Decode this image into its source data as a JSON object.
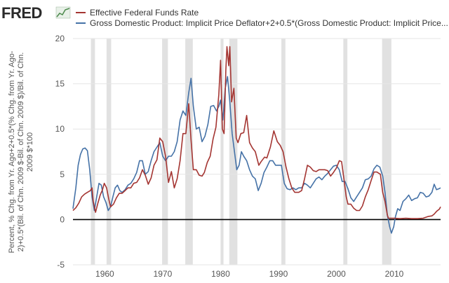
{
  "header": {
    "logo_text": "FRED",
    "logo_icon": "fred-chart-icon"
  },
  "colors": {
    "series_red": "#a43532",
    "series_blue": "#4572a7",
    "recession": "#e1e1e1",
    "grid": "#e6e6e6",
    "zero_line": "#000000"
  },
  "chart_data": {
    "type": "line",
    "xlabel": "",
    "ylabel": "Percent, % Chg. from Yr. Ago+2+0.5*(% Chg. from Yr. Ago-2)+0.5*(Bil. of Chn. 2009 $-Bil. of Chn. 2009 $)/Bil. of Chn. 2009 $*100",
    "ylabel_lines": [
      "Percent, % Chg. from Yr. Ago+2+0.5*(% Chg. from Yr. Ago-",
      "2)+0.5*(Bil. of Chn. 2009 $-Bil. of Chn. 2009 $)/Bil. of Chn.",
      "2009 $*100"
    ],
    "xlim": [
      1954.5,
      2018.0
    ],
    "ylim": [
      -5,
      20
    ],
    "yticks": [
      -5,
      0,
      5,
      10,
      15,
      20
    ],
    "xticks": [
      1960,
      1970,
      1980,
      1990,
      2000,
      2010
    ],
    "grid": true,
    "legend_position": "top-left",
    "recessions": [
      [
        1957.6,
        1958.3
      ],
      [
        1960.3,
        1961.1
      ],
      [
        1969.9,
        1970.9
      ],
      [
        1973.9,
        1975.2
      ],
      [
        1980.0,
        1980.5
      ],
      [
        1981.5,
        1982.9
      ],
      [
        1990.5,
        1991.2
      ],
      [
        2001.2,
        2001.9
      ],
      [
        2007.9,
        2009.5
      ]
    ],
    "series": [
      {
        "name": "Effective Federal Funds Rate",
        "color": "#a43532",
        "points": [
          [
            1954.5,
            1.0
          ],
          [
            1955.0,
            1.3
          ],
          [
            1955.5,
            1.8
          ],
          [
            1956.0,
            2.5
          ],
          [
            1956.5,
            2.8
          ],
          [
            1957.0,
            3.0
          ],
          [
            1957.5,
            3.2
          ],
          [
            1957.8,
            3.5
          ],
          [
            1958.0,
            2.0
          ],
          [
            1958.4,
            0.8
          ],
          [
            1958.8,
            1.8
          ],
          [
            1959.2,
            2.7
          ],
          [
            1959.6,
            3.3
          ],
          [
            1959.9,
            4.0
          ],
          [
            1960.3,
            3.5
          ],
          [
            1960.7,
            2.2
          ],
          [
            1961.0,
            1.4
          ],
          [
            1961.5,
            1.7
          ],
          [
            1962.0,
            2.4
          ],
          [
            1962.5,
            2.9
          ],
          [
            1963.0,
            2.9
          ],
          [
            1963.5,
            3.2
          ],
          [
            1964.0,
            3.5
          ],
          [
            1964.5,
            3.5
          ],
          [
            1965.0,
            4.0
          ],
          [
            1965.5,
            4.1
          ],
          [
            1966.0,
            4.6
          ],
          [
            1966.5,
            5.5
          ],
          [
            1967.0,
            4.9
          ],
          [
            1967.5,
            3.9
          ],
          [
            1968.0,
            4.6
          ],
          [
            1968.5,
            6.0
          ],
          [
            1969.0,
            6.6
          ],
          [
            1969.5,
            9.0
          ],
          [
            1970.0,
            8.6
          ],
          [
            1970.5,
            7.0
          ],
          [
            1971.0,
            4.1
          ],
          [
            1971.5,
            5.3
          ],
          [
            1972.0,
            3.5
          ],
          [
            1972.5,
            4.5
          ],
          [
            1973.0,
            6.5
          ],
          [
            1973.5,
            9.5
          ],
          [
            1974.0,
            9.5
          ],
          [
            1974.5,
            12.8
          ],
          [
            1974.9,
            8.8
          ],
          [
            1975.3,
            5.5
          ],
          [
            1975.8,
            5.5
          ],
          [
            1976.3,
            4.9
          ],
          [
            1976.8,
            4.8
          ],
          [
            1977.2,
            5.2
          ],
          [
            1977.7,
            6.3
          ],
          [
            1978.2,
            7.0
          ],
          [
            1978.7,
            8.9
          ],
          [
            1979.2,
            10.2
          ],
          [
            1979.7,
            13.8
          ],
          [
            1980.0,
            17.6
          ],
          [
            1980.3,
            10.0
          ],
          [
            1980.6,
            9.5
          ],
          [
            1980.9,
            16.5
          ],
          [
            1981.1,
            19.1
          ],
          [
            1981.4,
            17.0
          ],
          [
            1981.6,
            19.1
          ],
          [
            1981.9,
            13.0
          ],
          [
            1982.3,
            14.5
          ],
          [
            1982.7,
            9.0
          ],
          [
            1983.0,
            8.5
          ],
          [
            1983.5,
            9.5
          ],
          [
            1984.0,
            9.6
          ],
          [
            1984.5,
            11.5
          ],
          [
            1985.0,
            8.5
          ],
          [
            1985.5,
            7.9
          ],
          [
            1986.0,
            7.5
          ],
          [
            1986.6,
            6.0
          ],
          [
            1987.0,
            6.4
          ],
          [
            1987.6,
            6.9
          ],
          [
            1988.0,
            6.8
          ],
          [
            1988.6,
            8.0
          ],
          [
            1989.2,
            9.8
          ],
          [
            1989.8,
            8.6
          ],
          [
            1990.3,
            8.2
          ],
          [
            1990.8,
            7.5
          ],
          [
            1991.3,
            5.8
          ],
          [
            1991.8,
            4.5
          ],
          [
            1992.3,
            3.5
          ],
          [
            1992.8,
            3.0
          ],
          [
            1993.5,
            3.0
          ],
          [
            1994.0,
            3.2
          ],
          [
            1994.5,
            4.5
          ],
          [
            1995.0,
            6.0
          ],
          [
            1995.5,
            5.8
          ],
          [
            1996.0,
            5.4
          ],
          [
            1996.5,
            5.3
          ],
          [
            1997.0,
            5.5
          ],
          [
            1997.5,
            5.5
          ],
          [
            1998.0,
            5.5
          ],
          [
            1998.5,
            5.4
          ],
          [
            1999.0,
            4.8
          ],
          [
            1999.5,
            5.2
          ],
          [
            2000.0,
            5.7
          ],
          [
            2000.5,
            6.5
          ],
          [
            2000.9,
            6.4
          ],
          [
            2001.3,
            4.5
          ],
          [
            2001.7,
            2.5
          ],
          [
            2002.0,
            1.7
          ],
          [
            2002.5,
            1.7
          ],
          [
            2003.0,
            1.25
          ],
          [
            2003.5,
            1.0
          ],
          [
            2004.0,
            1.0
          ],
          [
            2004.5,
            1.5
          ],
          [
            2005.0,
            2.5
          ],
          [
            2005.5,
            3.3
          ],
          [
            2006.0,
            4.3
          ],
          [
            2006.5,
            5.25
          ],
          [
            2007.0,
            5.25
          ],
          [
            2007.6,
            5.0
          ],
          [
            2008.0,
            3.0
          ],
          [
            2008.4,
            2.0
          ],
          [
            2008.8,
            0.5
          ],
          [
            2009.0,
            0.15
          ],
          [
            2010.0,
            0.15
          ],
          [
            2011.0,
            0.1
          ],
          [
            2012.0,
            0.15
          ],
          [
            2013.0,
            0.1
          ],
          [
            2014.0,
            0.1
          ],
          [
            2015.0,
            0.15
          ],
          [
            2015.9,
            0.35
          ],
          [
            2016.5,
            0.4
          ],
          [
            2016.9,
            0.6
          ],
          [
            2017.3,
            0.9
          ],
          [
            2017.8,
            1.15
          ],
          [
            2018.0,
            1.4
          ]
        ]
      },
      {
        "name": "Gross Domestic Product: Implicit Price Deflator+2+0.5*(Gross Domestic Product: Implicit Price...",
        "color": "#4572a7",
        "points": [
          [
            1954.5,
            1.2
          ],
          [
            1955.0,
            3.5
          ],
          [
            1955.4,
            6.0
          ],
          [
            1955.8,
            7.2
          ],
          [
            1956.2,
            7.8
          ],
          [
            1956.6,
            7.9
          ],
          [
            1957.0,
            7.6
          ],
          [
            1957.4,
            5.5
          ],
          [
            1957.8,
            2.5
          ],
          [
            1958.2,
            1.0
          ],
          [
            1958.6,
            2.5
          ],
          [
            1959.0,
            4.0
          ],
          [
            1959.4,
            3.8
          ],
          [
            1959.8,
            2.5
          ],
          [
            1960.2,
            1.9
          ],
          [
            1960.6,
            1.0
          ],
          [
            1961.0,
            1.4
          ],
          [
            1961.4,
            2.5
          ],
          [
            1961.8,
            3.5
          ],
          [
            1962.2,
            3.8
          ],
          [
            1962.6,
            3.2
          ],
          [
            1963.0,
            3.0
          ],
          [
            1963.5,
            3.3
          ],
          [
            1964.0,
            3.8
          ],
          [
            1964.5,
            4.0
          ],
          [
            1965.0,
            4.5
          ],
          [
            1965.5,
            5.2
          ],
          [
            1966.0,
            6.5
          ],
          [
            1966.5,
            6.5
          ],
          [
            1967.0,
            5.0
          ],
          [
            1967.5,
            5.3
          ],
          [
            1968.0,
            6.5
          ],
          [
            1968.5,
            7.5
          ],
          [
            1969.0,
            8.0
          ],
          [
            1969.5,
            8.5
          ],
          [
            1970.0,
            7.0
          ],
          [
            1970.5,
            6.5
          ],
          [
            1971.0,
            7.0
          ],
          [
            1971.5,
            7.0
          ],
          [
            1972.0,
            7.5
          ],
          [
            1972.5,
            8.6
          ],
          [
            1973.0,
            11.0
          ],
          [
            1973.5,
            12.0
          ],
          [
            1974.0,
            11.5
          ],
          [
            1974.5,
            14.0
          ],
          [
            1974.9,
            15.6
          ],
          [
            1975.3,
            12.5
          ],
          [
            1975.8,
            10.0
          ],
          [
            1976.3,
            10.2
          ],
          [
            1976.8,
            8.6
          ],
          [
            1977.3,
            9.2
          ],
          [
            1977.8,
            10.5
          ],
          [
            1978.3,
            12.5
          ],
          [
            1978.8,
            12.6
          ],
          [
            1979.3,
            12.0
          ],
          [
            1979.7,
            12.5
          ],
          [
            1980.0,
            13.2
          ],
          [
            1980.4,
            11.0
          ],
          [
            1980.8,
            14.5
          ],
          [
            1981.2,
            15.8
          ],
          [
            1981.6,
            13.0
          ],
          [
            1982.0,
            9.5
          ],
          [
            1982.4,
            7.5
          ],
          [
            1982.8,
            5.5
          ],
          [
            1983.2,
            6.0
          ],
          [
            1983.6,
            7.5
          ],
          [
            1984.0,
            7.0
          ],
          [
            1984.5,
            6.5
          ],
          [
            1985.0,
            5.5
          ],
          [
            1985.5,
            4.8
          ],
          [
            1986.0,
            4.5
          ],
          [
            1986.5,
            3.2
          ],
          [
            1987.0,
            4.0
          ],
          [
            1987.5,
            5.2
          ],
          [
            1988.0,
            5.8
          ],
          [
            1988.5,
            6.5
          ],
          [
            1989.0,
            6.5
          ],
          [
            1989.5,
            6.0
          ],
          [
            1990.0,
            6.0
          ],
          [
            1990.5,
            6.0
          ],
          [
            1991.0,
            4.0
          ],
          [
            1991.5,
            3.4
          ],
          [
            1992.0,
            3.3
          ],
          [
            1992.5,
            3.5
          ],
          [
            1993.0,
            3.3
          ],
          [
            1993.5,
            3.5
          ],
          [
            1994.0,
            3.5
          ],
          [
            1994.5,
            4.0
          ],
          [
            1995.0,
            3.8
          ],
          [
            1995.5,
            3.5
          ],
          [
            1996.0,
            4.0
          ],
          [
            1996.5,
            4.5
          ],
          [
            1997.0,
            4.7
          ],
          [
            1997.5,
            4.4
          ],
          [
            1998.0,
            4.8
          ],
          [
            1998.5,
            5.1
          ],
          [
            1999.0,
            5.5
          ],
          [
            1999.5,
            5.9
          ],
          [
            2000.0,
            6.0
          ],
          [
            2000.5,
            5.5
          ],
          [
            2001.0,
            4.2
          ],
          [
            2001.5,
            4.2
          ],
          [
            2002.0,
            3.4
          ],
          [
            2002.5,
            2.4
          ],
          [
            2003.0,
            2.0
          ],
          [
            2003.5,
            2.5
          ],
          [
            2004.0,
            3.0
          ],
          [
            2004.5,
            3.5
          ],
          [
            2005.0,
            4.4
          ],
          [
            2005.5,
            4.5
          ],
          [
            2006.0,
            4.8
          ],
          [
            2006.5,
            5.6
          ],
          [
            2007.0,
            6.0
          ],
          [
            2007.5,
            5.8
          ],
          [
            2008.0,
            4.8
          ],
          [
            2008.4,
            3.0
          ],
          [
            2008.8,
            0.5
          ],
          [
            2009.2,
            -0.8
          ],
          [
            2009.5,
            -1.5
          ],
          [
            2009.9,
            -0.8
          ],
          [
            2010.2,
            0.3
          ],
          [
            2010.6,
            1.2
          ],
          [
            2011.0,
            1.0
          ],
          [
            2011.5,
            2.0
          ],
          [
            2012.0,
            2.3
          ],
          [
            2012.5,
            2.7
          ],
          [
            2013.0,
            2.1
          ],
          [
            2013.5,
            2.3
          ],
          [
            2014.0,
            2.4
          ],
          [
            2014.5,
            3.0
          ],
          [
            2015.0,
            2.9
          ],
          [
            2015.5,
            2.5
          ],
          [
            2016.0,
            2.6
          ],
          [
            2016.5,
            3.0
          ],
          [
            2016.9,
            3.9
          ],
          [
            2017.3,
            3.3
          ],
          [
            2017.7,
            3.4
          ],
          [
            2018.0,
            3.5
          ]
        ]
      }
    ]
  }
}
